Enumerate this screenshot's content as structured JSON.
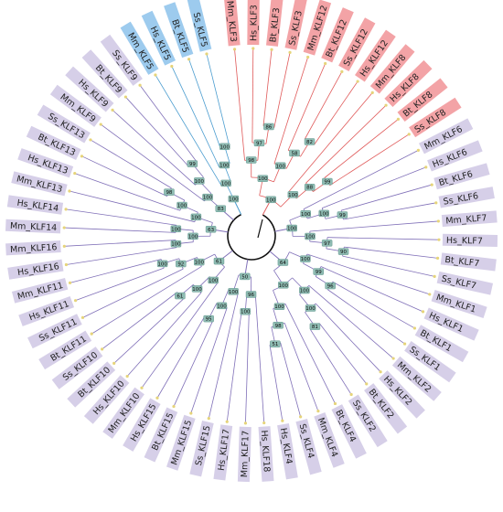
{
  "colors": {
    "red_clade": "#e05a5a",
    "blue_clade": "#4a9ccf",
    "purple_clade": "#8070b8",
    "center": "#111111",
    "red_box": "#f3a3a6",
    "blue_box": "#9dcbee",
    "purple_box": "#d6cfe8",
    "boot_box": "#8fbcb3",
    "leaf_dot": "#e6d47a"
  },
  "leaves": [
    {
      "label": "Mm_KLF3",
      "group": "red"
    },
    {
      "label": "Hs_KLF3",
      "group": "red"
    },
    {
      "label": "Bt_KLF3",
      "group": "red"
    },
    {
      "label": "Ss_KLF3",
      "group": "red"
    },
    {
      "label": "Mm_KLF12",
      "group": "red"
    },
    {
      "label": "Bt_KLF12",
      "group": "red"
    },
    {
      "label": "Ss_KLF12",
      "group": "red"
    },
    {
      "label": "Hs_KLF12",
      "group": "red"
    },
    {
      "label": "Mm_KLF8",
      "group": "red"
    },
    {
      "label": "Hs_KLF8",
      "group": "red"
    },
    {
      "label": "Bt_KLF8",
      "group": "red"
    },
    {
      "label": "Ss_KLF8",
      "group": "red"
    },
    {
      "label": "Mm_KLF6",
      "group": "purple"
    },
    {
      "label": "Hs_KLF6",
      "group": "purple"
    },
    {
      "label": "Bt_KLF6",
      "group": "purple"
    },
    {
      "label": "Ss_KLF6",
      "group": "purple"
    },
    {
      "label": "Mm_KLF7",
      "group": "purple"
    },
    {
      "label": "Hs_KLF7",
      "group": "purple"
    },
    {
      "label": "Bt_KLF7",
      "group": "purple"
    },
    {
      "label": "Ss_KLF7",
      "group": "purple"
    },
    {
      "label": "Mm_KLF1",
      "group": "purple"
    },
    {
      "label": "Hs_KLF1",
      "group": "purple"
    },
    {
      "label": "Bt_KLF1",
      "group": "purple"
    },
    {
      "label": "Ss_KLF1",
      "group": "purple"
    },
    {
      "label": "Mm_KLF2",
      "group": "purple"
    },
    {
      "label": "Hs_KLF2",
      "group": "purple"
    },
    {
      "label": "Bt_KLF2",
      "group": "purple"
    },
    {
      "label": "Ss_KLF2",
      "group": "purple"
    },
    {
      "label": "Bt_KLF4",
      "group": "purple"
    },
    {
      "label": "Mm_KLF4",
      "group": "purple"
    },
    {
      "label": "Ss_KLF4",
      "group": "purple"
    },
    {
      "label": "Hs_KLF4",
      "group": "purple"
    },
    {
      "label": "Hs_KLF18",
      "group": "purple"
    },
    {
      "label": "Mm_KLF17",
      "group": "purple"
    },
    {
      "label": "Hs_KLF17",
      "group": "purple"
    },
    {
      "label": "Ss_KLF15",
      "group": "purple"
    },
    {
      "label": "Mm_KLF15",
      "group": "purple"
    },
    {
      "label": "Bt_KLF15",
      "group": "purple"
    },
    {
      "label": "Hs_KLF15",
      "group": "purple"
    },
    {
      "label": "Mm_KLF10",
      "group": "purple"
    },
    {
      "label": "Hs_KLF10",
      "group": "purple"
    },
    {
      "label": "Bt_KLF10",
      "group": "purple"
    },
    {
      "label": "Ss_KLF10",
      "group": "purple"
    },
    {
      "label": "Bt_KLF11",
      "group": "purple"
    },
    {
      "label": "Ss_KLF11",
      "group": "purple"
    },
    {
      "label": "Hs_KLF11",
      "group": "purple"
    },
    {
      "label": "Mm_KLF11",
      "group": "purple"
    },
    {
      "label": "Hs_KLF16",
      "group": "purple"
    },
    {
      "label": "Mm_KLF16",
      "group": "purple"
    },
    {
      "label": "Mm_KLF14",
      "group": "purple"
    },
    {
      "label": "Hs_KLF14",
      "group": "purple"
    },
    {
      "label": "Mm_KLF13",
      "group": "purple"
    },
    {
      "label": "Hs_KLF13",
      "group": "purple"
    },
    {
      "label": "Bt_KLF13",
      "group": "purple"
    },
    {
      "label": "Ss_KLF13",
      "group": "purple"
    },
    {
      "label": "Mm_KLF9",
      "group": "purple"
    },
    {
      "label": "Hs_KLF9",
      "group": "purple"
    },
    {
      "label": "Bt_KLF9",
      "group": "purple"
    },
    {
      "label": "Ss_KLF9",
      "group": "purple"
    },
    {
      "label": "Mm_KLF5",
      "group": "blue"
    },
    {
      "label": "Hs_KLF5",
      "group": "blue"
    },
    {
      "label": "Bt_KLF5",
      "group": "blue"
    },
    {
      "label": "Ss_KLF5",
      "group": "blue"
    }
  ],
  "tree": {
    "group": "center",
    "children": [
      {
        "group": "red",
        "boot": "100",
        "children": [
          {
            "group": "red",
            "boot": "100",
            "children": [
              {
                "group": "red",
                "boot": "98",
                "children": [
                  {
                    "leaf": 0
                  },
                  {
                    "group": "red",
                    "boot": "97",
                    "children": [
                      {
                        "leaf": 1
                      },
                      {
                        "group": "red",
                        "boot": "86",
                        "children": [
                          {
                            "leaf": 2
                          },
                          {
                            "leaf": 3
                          }
                        ]
                      }
                    ]
                  }
                ]
              },
              {
                "group": "red",
                "boot": "100",
                "children": [
                  {
                    "leaf": 4
                  },
                  {
                    "group": "red",
                    "boot": "58",
                    "children": [
                      {
                        "leaf": 5
                      },
                      {
                        "group": "red",
                        "boot": "82",
                        "children": [
                          {
                            "leaf": 6
                          },
                          {
                            "leaf": 7
                          }
                        ]
                      }
                    ]
                  }
                ]
              }
            ]
          },
          {
            "group": "red",
            "boot": "100",
            "children": [
              {
                "leaf": 8
              },
              {
                "group": "red",
                "boot": "88",
                "children": [
                  {
                    "leaf": 9
                  },
                  {
                    "group": "red",
                    "boot": "99",
                    "children": [
                      {
                        "leaf": 10
                      },
                      {
                        "leaf": 11
                      }
                    ]
                  }
                ]
              }
            ]
          }
        ]
      },
      {
        "group": "purple",
        "boot": "100",
        "children": [
          {
            "group": "purple",
            "boot": "100",
            "children": [
              {
                "leaf": 12
              },
              {
                "group": "purple",
                "boot": "100",
                "children": [
                  {
                    "leaf": 13
                  },
                  {
                    "group": "purple",
                    "boot": "99",
                    "children": [
                      {
                        "leaf": 14
                      },
                      {
                        "leaf": 15
                      }
                    ]
                  }
                ]
              }
            ]
          },
          {
            "group": "purple",
            "boot": "100",
            "children": [
              {
                "leaf": 16
              },
              {
                "group": "purple",
                "boot": "97",
                "children": [
                  {
                    "leaf": 17
                  },
                  {
                    "group": "purple",
                    "boot": "90",
                    "children": [
                      {
                        "leaf": 18
                      },
                      {
                        "leaf": 19
                      }
                    ]
                  }
                ]
              }
            ]
          }
        ]
      },
      {
        "group": "purple",
        "boot": "64",
        "children": [
          {
            "group": "purple",
            "boot": "100",
            "children": [
              {
                "leaf": 20
              },
              {
                "group": "purple",
                "boot": "99",
                "children": [
                  {
                    "leaf": 21
                  },
                  {
                    "group": "purple",
                    "boot": "96",
                    "children": [
                      {
                        "leaf": 22
                      },
                      {
                        "leaf": 23
                      }
                    ]
                  }
                ]
              }
            ]
          },
          {
            "group": "purple",
            "boot": "100",
            "children": [
              {
                "group": "purple",
                "boot": "100",
                "children": [
                  {
                    "leaf": 24
                  },
                  {
                    "group": "purple",
                    "boot": "100",
                    "children": [
                      {
                        "leaf": 25
                      },
                      {
                        "group": "purple",
                        "boot": "81",
                        "children": [
                          {
                            "leaf": 26
                          },
                          {
                            "leaf": 27
                          }
                        ]
                      }
                    ]
                  }
                ]
              },
              {
                "group": "purple",
                "boot": "100",
                "children": [
                  {
                    "leaf": 28
                  },
                  {
                    "group": "purple",
                    "boot": "98",
                    "children": [
                      {
                        "leaf": 29
                      },
                      {
                        "group": "purple",
                        "boot": "51",
                        "children": [
                          {
                            "leaf": 30
                          },
                          {
                            "leaf": 31
                          }
                        ]
                      }
                    ]
                  }
                ]
              }
            ]
          }
        ]
      },
      {
        "group": "purple",
        "boot": "50",
        "children": [
          {
            "group": "purple",
            "boot": "96",
            "children": [
              {
                "leaf": 32
              },
              {
                "group": "purple",
                "boot": "100",
                "children": [
                  {
                    "leaf": 33
                  },
                  {
                    "leaf": 34
                  }
                ]
              }
            ]
          },
          {
            "group": "purple",
            "boot": "100",
            "children": [
              {
                "leaf": 35
              },
              {
                "group": "purple",
                "boot": "100",
                "children": [
                  {
                    "leaf": 36
                  },
                  {
                    "group": "purple",
                    "boot": "95",
                    "children": [
                      {
                        "leaf": 37
                      },
                      {
                        "leaf": 38
                      }
                    ]
                  }
                ]
              }
            ]
          }
        ]
      },
      {
        "group": "purple",
        "boot": "61",
        "children": [
          {
            "group": "purple",
            "boot": "100",
            "children": [
              {
                "leaf": 39
              },
              {
                "group": "purple",
                "boot": "100",
                "children": [
                  {
                    "leaf": 40
                  },
                  {
                    "group": "purple",
                    "boot": "61",
                    "children": [
                      {
                        "leaf": 41
                      },
                      {
                        "leaf": 42
                      }
                    ]
                  }
                ]
              }
            ]
          },
          {
            "group": "purple",
            "boot": "100",
            "children": [
              {
                "leaf": 43
              },
              {
                "group": "purple",
                "boot": "92",
                "children": [
                  {
                    "leaf": 44
                  },
                  {
                    "group": "purple",
                    "boot": "100",
                    "children": [
                      {
                        "leaf": 45
                      },
                      {
                        "leaf": 46
                      }
                    ]
                  }
                ]
              }
            ]
          }
        ]
      },
      {
        "group": "purple",
        "boot": "63",
        "children": [
          {
            "group": "purple",
            "boot": "100",
            "children": [
              {
                "group": "purple",
                "boot": "100",
                "children": [
                  {
                    "leaf": 47
                  },
                  {
                    "leaf": 48
                  }
                ]
              },
              {
                "group": "purple",
                "boot": "100",
                "children": [
                  {
                    "leaf": 49
                  },
                  {
                    "leaf": 50
                  }
                ]
              }
            ]
          },
          {
            "group": "purple",
            "boot": "100",
            "children": [
              {
                "leaf": 51
              },
              {
                "group": "purple",
                "boot": "100",
                "children": [
                  {
                    "leaf": 52
                  },
                  {
                    "group": "purple",
                    "boot": "98",
                    "children": [
                      {
                        "leaf": 53
                      },
                      {
                        "leaf": 54
                      }
                    ]
                  }
                ]
              }
            ]
          }
        ]
      },
      {
        "group": "purple",
        "boot": "83",
        "children": [
          {
            "group": "purple",
            "boot": "100",
            "children": [
              {
                "leaf": 55
              },
              {
                "group": "purple",
                "boot": "100",
                "children": [
                  {
                    "leaf": 56
                  },
                  {
                    "group": "purple",
                    "boot": "99",
                    "children": [
                      {
                        "leaf": 57
                      },
                      {
                        "leaf": 58
                      }
                    ]
                  }
                ]
              }
            ]
          }
        ]
      },
      {
        "group": "blue",
        "boot": "100",
        "children": [
          {
            "group": "blue",
            "boot": "100",
            "children": [
              {
                "leaf": 59
              },
              {
                "group": "blue",
                "boot": "100",
                "children": [
                  {
                    "leaf": 60
                  },
                  {
                    "group": "blue",
                    "boot": "100",
                    "children": [
                      {
                        "leaf": 61
                      },
                      {
                        "leaf": 62
                      }
                    ]
                  }
                ]
              }
            ]
          }
        ]
      }
    ]
  }
}
